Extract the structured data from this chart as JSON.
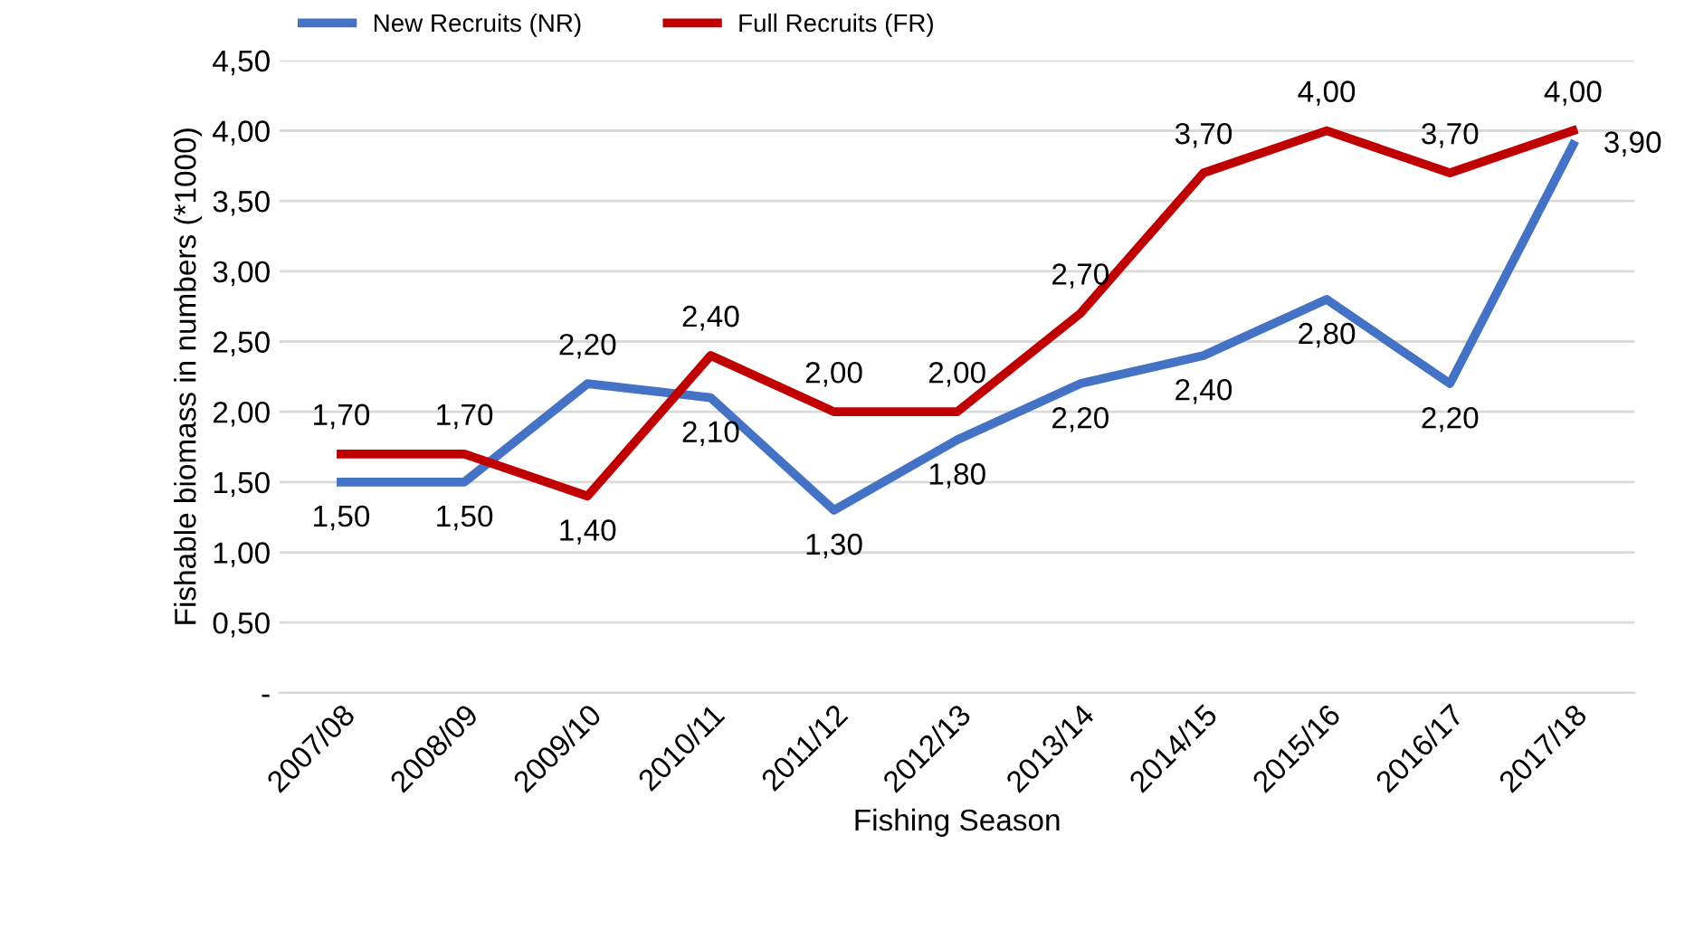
{
  "chart_data": {
    "type": "line",
    "xlabel": "Fishing Season",
    "ylabel": "Fishable biomass in numbers (*1000)",
    "categories": [
      "2007/08",
      "2008/09",
      "2009/10",
      "2010/11",
      "2011/12",
      "2012/13",
      "2013/14",
      "2014/15",
      "2015/16",
      "2016/17",
      "2017/18"
    ],
    "series": [
      {
        "name": "New Recruits (NR)",
        "color": "#4472c4",
        "values": [
          1.5,
          1.5,
          2.2,
          2.1,
          1.3,
          1.8,
          2.2,
          2.4,
          2.8,
          2.2,
          3.9
        ],
        "value_labels": [
          "1,50",
          "1,50",
          "2,20",
          "2,10",
          "1,30",
          "1,80",
          "2,20",
          "2,40",
          "2,80",
          "2,20",
          "3,90"
        ]
      },
      {
        "name": "Full Recruits (FR)",
        "color": "#c00000",
        "values": [
          1.7,
          1.7,
          1.4,
          2.4,
          2.0,
          2.0,
          2.7,
          3.7,
          4.0,
          3.7,
          4.0
        ],
        "value_labels": [
          "1,70",
          "1,70",
          "1,40",
          "2,40",
          "2,00",
          "2,00",
          "2,70",
          "3,70",
          "4,00",
          "3,70",
          "4,00"
        ]
      }
    ],
    "ylim": [
      0,
      4.5
    ],
    "yticks": [
      {
        "value": 0,
        "label": "-"
      },
      {
        "value": 0.5,
        "label": "0,50"
      },
      {
        "value": 1,
        "label": "1,00"
      },
      {
        "value": 1.5,
        "label": "1,50"
      },
      {
        "value": 2,
        "label": "2,00"
      },
      {
        "value": 2.5,
        "label": "2,50"
      },
      {
        "value": 3,
        "label": "3,00"
      },
      {
        "value": 3.5,
        "label": "3,50"
      },
      {
        "value": 4,
        "label": "4,00"
      },
      {
        "value": 4.5,
        "label": "4,50"
      }
    ],
    "grid": "y",
    "legend": "top left",
    "marker": "none",
    "line_style": "solid"
  }
}
